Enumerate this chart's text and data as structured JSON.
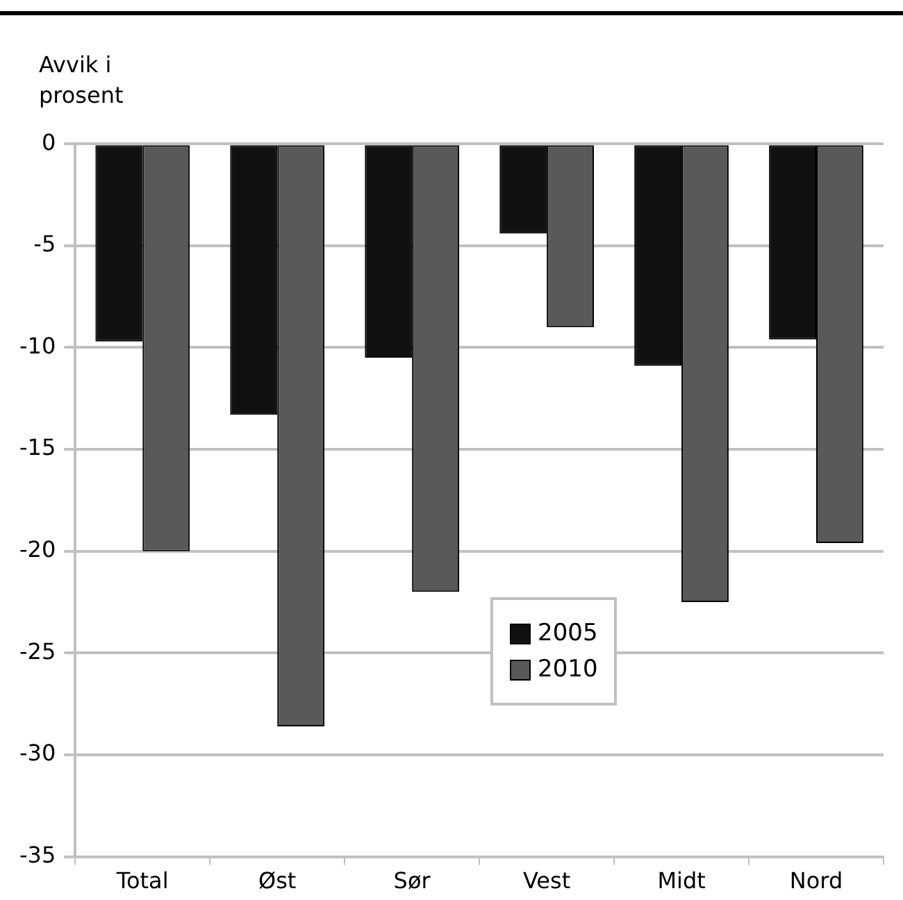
{
  "chart_data": {
    "type": "bar",
    "ylabel": "Avvik i prosent",
    "categories": [
      "Total",
      "Øst",
      "Sør",
      "Vest",
      "Midt",
      "Nord"
    ],
    "series": [
      {
        "name": "2005",
        "color": "#111111",
        "values": [
          -9.7,
          -13.3,
          -10.5,
          -4.4,
          -10.9,
          -9.6
        ]
      },
      {
        "name": "2010",
        "color": "#595959",
        "values": [
          -20.0,
          -28.6,
          -22.0,
          -9.0,
          -22.5,
          -19.6
        ]
      }
    ],
    "ylim": [
      -35,
      0
    ],
    "yticks": [
      -35,
      -30,
      -25,
      -20,
      -15,
      -10,
      -5,
      0
    ],
    "grid": "y",
    "legend": "bottom"
  }
}
